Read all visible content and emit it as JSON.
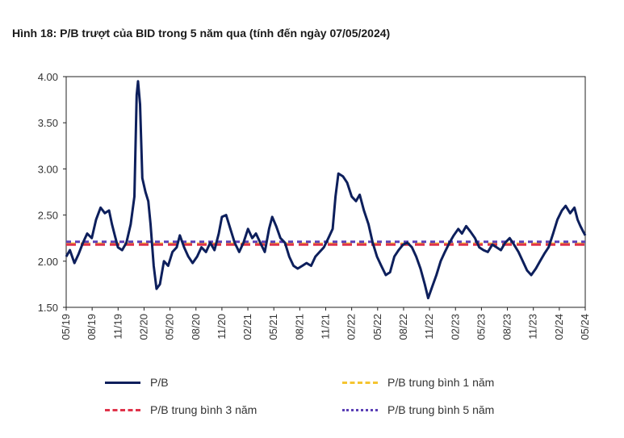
{
  "title": "Hình 18: P/B trượt của BID trong 5 năm qua (tính đến ngày 07/05/2024)",
  "chart_data": {
    "type": "line",
    "ylim": [
      1.5,
      4.0
    ],
    "yticks": [
      "1.50",
      "2.00",
      "2.50",
      "3.00",
      "3.50",
      "4.00"
    ],
    "ytick_values": [
      1.5,
      2.0,
      2.5,
      3.0,
      3.5,
      4.0
    ],
    "xticks": [
      "05/19",
      "08/19",
      "11/19",
      "02/20",
      "05/20",
      "08/20",
      "11/20",
      "02/21",
      "05/21",
      "08/21",
      "11/21",
      "02/22",
      "05/22",
      "08/22",
      "11/22",
      "02/23",
      "05/23",
      "08/23",
      "11/23",
      "02/24",
      "05/24"
    ],
    "x_range": [
      "2019-05-07",
      "2024-05-07"
    ],
    "series": [
      {
        "name": "P/B",
        "color": "#0d1f5c",
        "points": [
          [
            "2019-05-07",
            2.05
          ],
          [
            "2019-05-20",
            2.12
          ],
          [
            "2019-06-05",
            1.98
          ],
          [
            "2019-06-20",
            2.08
          ],
          [
            "2019-07-05",
            2.2
          ],
          [
            "2019-07-20",
            2.3
          ],
          [
            "2019-08-05",
            2.25
          ],
          [
            "2019-08-20",
            2.45
          ],
          [
            "2019-09-05",
            2.58
          ],
          [
            "2019-09-20",
            2.52
          ],
          [
            "2019-10-05",
            2.55
          ],
          [
            "2019-10-15",
            2.4
          ],
          [
            "2019-10-25",
            2.28
          ],
          [
            "2019-11-05",
            2.15
          ],
          [
            "2019-11-20",
            2.12
          ],
          [
            "2019-12-05",
            2.2
          ],
          [
            "2019-12-20",
            2.4
          ],
          [
            "2020-01-02",
            2.7
          ],
          [
            "2020-01-10",
            3.8
          ],
          [
            "2020-01-15",
            3.95
          ],
          [
            "2020-01-22",
            3.7
          ],
          [
            "2020-01-30",
            2.9
          ],
          [
            "2020-02-10",
            2.75
          ],
          [
            "2020-02-20",
            2.65
          ],
          [
            "2020-02-28",
            2.4
          ],
          [
            "2020-03-10",
            1.95
          ],
          [
            "2020-03-20",
            1.7
          ],
          [
            "2020-04-01",
            1.75
          ],
          [
            "2020-04-15",
            2.0
          ],
          [
            "2020-04-30",
            1.95
          ],
          [
            "2020-05-15",
            2.1
          ],
          [
            "2020-05-30",
            2.15
          ],
          [
            "2020-06-10",
            2.28
          ],
          [
            "2020-06-25",
            2.15
          ],
          [
            "2020-07-10",
            2.05
          ],
          [
            "2020-07-25",
            1.98
          ],
          [
            "2020-08-10",
            2.05
          ],
          [
            "2020-08-25",
            2.15
          ],
          [
            "2020-09-10",
            2.1
          ],
          [
            "2020-09-25",
            2.2
          ],
          [
            "2020-10-10",
            2.12
          ],
          [
            "2020-10-25",
            2.3
          ],
          [
            "2020-11-05",
            2.48
          ],
          [
            "2020-11-20",
            2.5
          ],
          [
            "2020-12-05",
            2.35
          ],
          [
            "2020-12-20",
            2.2
          ],
          [
            "2021-01-05",
            2.1
          ],
          [
            "2021-01-20",
            2.2
          ],
          [
            "2021-02-05",
            2.35
          ],
          [
            "2021-02-20",
            2.25
          ],
          [
            "2021-03-05",
            2.3
          ],
          [
            "2021-03-20",
            2.2
          ],
          [
            "2021-04-05",
            2.1
          ],
          [
            "2021-04-20",
            2.35
          ],
          [
            "2021-05-01",
            2.48
          ],
          [
            "2021-05-15",
            2.38
          ],
          [
            "2021-05-30",
            2.25
          ],
          [
            "2021-06-15",
            2.2
          ],
          [
            "2021-06-30",
            2.05
          ],
          [
            "2021-07-15",
            1.95
          ],
          [
            "2021-07-30",
            1.92
          ],
          [
            "2021-08-15",
            1.95
          ],
          [
            "2021-08-30",
            1.98
          ],
          [
            "2021-09-15",
            1.95
          ],
          [
            "2021-09-30",
            2.05
          ],
          [
            "2021-10-15",
            2.1
          ],
          [
            "2021-10-30",
            2.15
          ],
          [
            "2021-11-15",
            2.25
          ],
          [
            "2021-11-30",
            2.35
          ],
          [
            "2021-12-10",
            2.7
          ],
          [
            "2021-12-20",
            2.95
          ],
          [
            "2022-01-05",
            2.92
          ],
          [
            "2022-01-20",
            2.85
          ],
          [
            "2022-02-05",
            2.7
          ],
          [
            "2022-02-20",
            2.65
          ],
          [
            "2022-03-05",
            2.72
          ],
          [
            "2022-03-20",
            2.55
          ],
          [
            "2022-04-05",
            2.4
          ],
          [
            "2022-04-20",
            2.2
          ],
          [
            "2022-05-05",
            2.05
          ],
          [
            "2022-05-20",
            1.95
          ],
          [
            "2022-06-05",
            1.85
          ],
          [
            "2022-06-20",
            1.88
          ],
          [
            "2022-07-05",
            2.05
          ],
          [
            "2022-07-20",
            2.12
          ],
          [
            "2022-08-05",
            2.18
          ],
          [
            "2022-08-20",
            2.2
          ],
          [
            "2022-09-05",
            2.15
          ],
          [
            "2022-09-20",
            2.05
          ],
          [
            "2022-10-05",
            1.92
          ],
          [
            "2022-10-20",
            1.75
          ],
          [
            "2022-11-01",
            1.6
          ],
          [
            "2022-11-15",
            1.72
          ],
          [
            "2022-11-30",
            1.85
          ],
          [
            "2022-12-15",
            2.0
          ],
          [
            "2022-12-30",
            2.1
          ],
          [
            "2023-01-15",
            2.2
          ],
          [
            "2023-01-30",
            2.28
          ],
          [
            "2023-02-15",
            2.35
          ],
          [
            "2023-02-28",
            2.3
          ],
          [
            "2023-03-15",
            2.38
          ],
          [
            "2023-03-30",
            2.32
          ],
          [
            "2023-04-15",
            2.25
          ],
          [
            "2023-04-30",
            2.15
          ],
          [
            "2023-05-15",
            2.12
          ],
          [
            "2023-05-30",
            2.1
          ],
          [
            "2023-06-15",
            2.18
          ],
          [
            "2023-06-30",
            2.15
          ],
          [
            "2023-07-15",
            2.12
          ],
          [
            "2023-07-30",
            2.2
          ],
          [
            "2023-08-15",
            2.25
          ],
          [
            "2023-08-30",
            2.18
          ],
          [
            "2023-09-15",
            2.1
          ],
          [
            "2023-09-30",
            2.0
          ],
          [
            "2023-10-15",
            1.9
          ],
          [
            "2023-10-30",
            1.85
          ],
          [
            "2023-11-15",
            1.92
          ],
          [
            "2023-11-30",
            2.0
          ],
          [
            "2023-12-15",
            2.08
          ],
          [
            "2023-12-30",
            2.15
          ],
          [
            "2024-01-15",
            2.3
          ],
          [
            "2024-01-30",
            2.45
          ],
          [
            "2024-02-15",
            2.55
          ],
          [
            "2024-02-28",
            2.6
          ],
          [
            "2024-03-15",
            2.52
          ],
          [
            "2024-03-30",
            2.58
          ],
          [
            "2024-04-10",
            2.45
          ],
          [
            "2024-04-20",
            2.38
          ],
          [
            "2024-04-30",
            2.32
          ],
          [
            "2024-05-07",
            2.28
          ]
        ]
      },
      {
        "name": "P/B trung bình 1 năm",
        "color": "#f5c531",
        "dash": "long",
        "value": 2.19
      },
      {
        "name": "P/B trung bình 3 năm",
        "color": "#e0334a",
        "dash": "long",
        "value": 2.18
      },
      {
        "name": "P/B trung bình 5 năm",
        "color": "#5b3fb5",
        "dash": "short",
        "value": 2.21
      }
    ]
  }
}
